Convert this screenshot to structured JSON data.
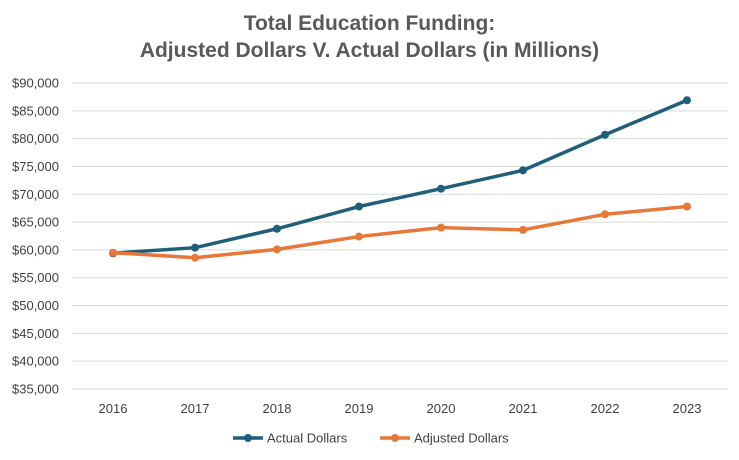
{
  "chart_data": {
    "type": "line",
    "title": "Total Education Funding:",
    "subtitle": "Adjusted Dollars V. Actual Dollars (in Millions)",
    "xlabel": "",
    "ylabel": "",
    "categories": [
      "2016",
      "2017",
      "2018",
      "2019",
      "2020",
      "2021",
      "2022",
      "2023"
    ],
    "ylim": [
      35000,
      90000
    ],
    "yticks": [
      35000,
      40000,
      45000,
      50000,
      55000,
      60000,
      65000,
      70000,
      75000,
      80000,
      85000,
      90000
    ],
    "ytick_labels": [
      "$35,000",
      "$40,000",
      "$45,000",
      "$50,000",
      "$55,000",
      "$60,000",
      "$65,000",
      "$70,000",
      "$75,000",
      "$80,000",
      "$85,000",
      "$90,000"
    ],
    "grid": true,
    "legend_position": "bottom",
    "series": [
      {
        "name": "Actual Dollars",
        "color": "#1f5f7a",
        "values": [
          59400,
          60400,
          63800,
          67800,
          71000,
          74300,
          80700,
          86900
        ]
      },
      {
        "name": "Adjusted Dollars",
        "color": "#e8773a",
        "values": [
          59500,
          58600,
          60100,
          62400,
          64000,
          63600,
          66400,
          67800
        ]
      }
    ]
  }
}
